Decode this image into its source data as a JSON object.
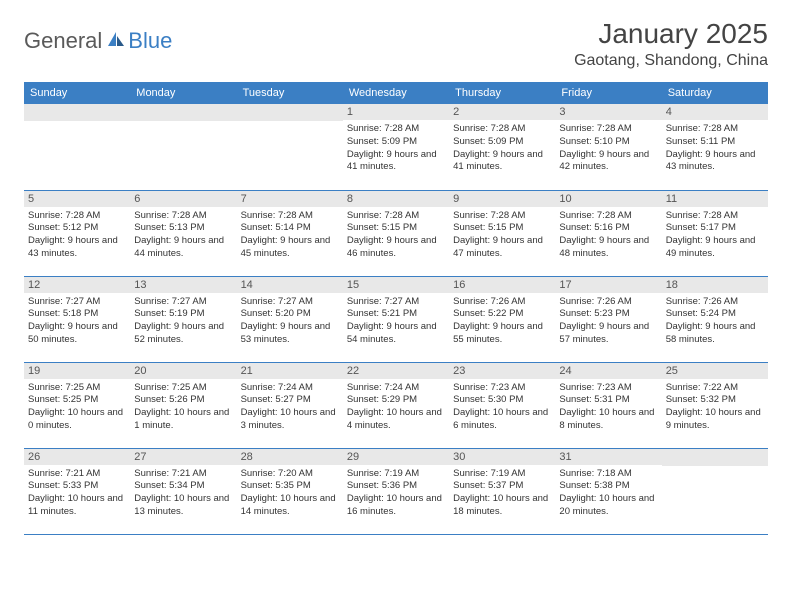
{
  "logo": {
    "text1": "General",
    "text2": "Blue"
  },
  "title": "January 2025",
  "location": "Gaotang, Shandong, China",
  "dayNames": [
    "Sunday",
    "Monday",
    "Tuesday",
    "Wednesday",
    "Thursday",
    "Friday",
    "Saturday"
  ],
  "colors": {
    "headerBlue": "#3b7fc4",
    "cellGray": "#e8e8e8",
    "textDark": "#333333"
  },
  "weeks": [
    [
      null,
      null,
      null,
      {
        "n": "1",
        "sr": "7:28 AM",
        "ss": "5:09 PM",
        "dl": "9 hours and 41 minutes."
      },
      {
        "n": "2",
        "sr": "7:28 AM",
        "ss": "5:09 PM",
        "dl": "9 hours and 41 minutes."
      },
      {
        "n": "3",
        "sr": "7:28 AM",
        "ss": "5:10 PM",
        "dl": "9 hours and 42 minutes."
      },
      {
        "n": "4",
        "sr": "7:28 AM",
        "ss": "5:11 PM",
        "dl": "9 hours and 43 minutes."
      }
    ],
    [
      {
        "n": "5",
        "sr": "7:28 AM",
        "ss": "5:12 PM",
        "dl": "9 hours and 43 minutes."
      },
      {
        "n": "6",
        "sr": "7:28 AM",
        "ss": "5:13 PM",
        "dl": "9 hours and 44 minutes."
      },
      {
        "n": "7",
        "sr": "7:28 AM",
        "ss": "5:14 PM",
        "dl": "9 hours and 45 minutes."
      },
      {
        "n": "8",
        "sr": "7:28 AM",
        "ss": "5:15 PM",
        "dl": "9 hours and 46 minutes."
      },
      {
        "n": "9",
        "sr": "7:28 AM",
        "ss": "5:15 PM",
        "dl": "9 hours and 47 minutes."
      },
      {
        "n": "10",
        "sr": "7:28 AM",
        "ss": "5:16 PM",
        "dl": "9 hours and 48 minutes."
      },
      {
        "n": "11",
        "sr": "7:28 AM",
        "ss": "5:17 PM",
        "dl": "9 hours and 49 minutes."
      }
    ],
    [
      {
        "n": "12",
        "sr": "7:27 AM",
        "ss": "5:18 PM",
        "dl": "9 hours and 50 minutes."
      },
      {
        "n": "13",
        "sr": "7:27 AM",
        "ss": "5:19 PM",
        "dl": "9 hours and 52 minutes."
      },
      {
        "n": "14",
        "sr": "7:27 AM",
        "ss": "5:20 PM",
        "dl": "9 hours and 53 minutes."
      },
      {
        "n": "15",
        "sr": "7:27 AM",
        "ss": "5:21 PM",
        "dl": "9 hours and 54 minutes."
      },
      {
        "n": "16",
        "sr": "7:26 AM",
        "ss": "5:22 PM",
        "dl": "9 hours and 55 minutes."
      },
      {
        "n": "17",
        "sr": "7:26 AM",
        "ss": "5:23 PM",
        "dl": "9 hours and 57 minutes."
      },
      {
        "n": "18",
        "sr": "7:26 AM",
        "ss": "5:24 PM",
        "dl": "9 hours and 58 minutes."
      }
    ],
    [
      {
        "n": "19",
        "sr": "7:25 AM",
        "ss": "5:25 PM",
        "dl": "10 hours and 0 minutes."
      },
      {
        "n": "20",
        "sr": "7:25 AM",
        "ss": "5:26 PM",
        "dl": "10 hours and 1 minute."
      },
      {
        "n": "21",
        "sr": "7:24 AM",
        "ss": "5:27 PM",
        "dl": "10 hours and 3 minutes."
      },
      {
        "n": "22",
        "sr": "7:24 AM",
        "ss": "5:29 PM",
        "dl": "10 hours and 4 minutes."
      },
      {
        "n": "23",
        "sr": "7:23 AM",
        "ss": "5:30 PM",
        "dl": "10 hours and 6 minutes."
      },
      {
        "n": "24",
        "sr": "7:23 AM",
        "ss": "5:31 PM",
        "dl": "10 hours and 8 minutes."
      },
      {
        "n": "25",
        "sr": "7:22 AM",
        "ss": "5:32 PM",
        "dl": "10 hours and 9 minutes."
      }
    ],
    [
      {
        "n": "26",
        "sr": "7:21 AM",
        "ss": "5:33 PM",
        "dl": "10 hours and 11 minutes."
      },
      {
        "n": "27",
        "sr": "7:21 AM",
        "ss": "5:34 PM",
        "dl": "10 hours and 13 minutes."
      },
      {
        "n": "28",
        "sr": "7:20 AM",
        "ss": "5:35 PM",
        "dl": "10 hours and 14 minutes."
      },
      {
        "n": "29",
        "sr": "7:19 AM",
        "ss": "5:36 PM",
        "dl": "10 hours and 16 minutes."
      },
      {
        "n": "30",
        "sr": "7:19 AM",
        "ss": "5:37 PM",
        "dl": "10 hours and 18 minutes."
      },
      {
        "n": "31",
        "sr": "7:18 AM",
        "ss": "5:38 PM",
        "dl": "10 hours and 20 minutes."
      },
      null
    ]
  ],
  "labels": {
    "sunrise": "Sunrise:",
    "sunset": "Sunset:",
    "daylight": "Daylight:"
  }
}
